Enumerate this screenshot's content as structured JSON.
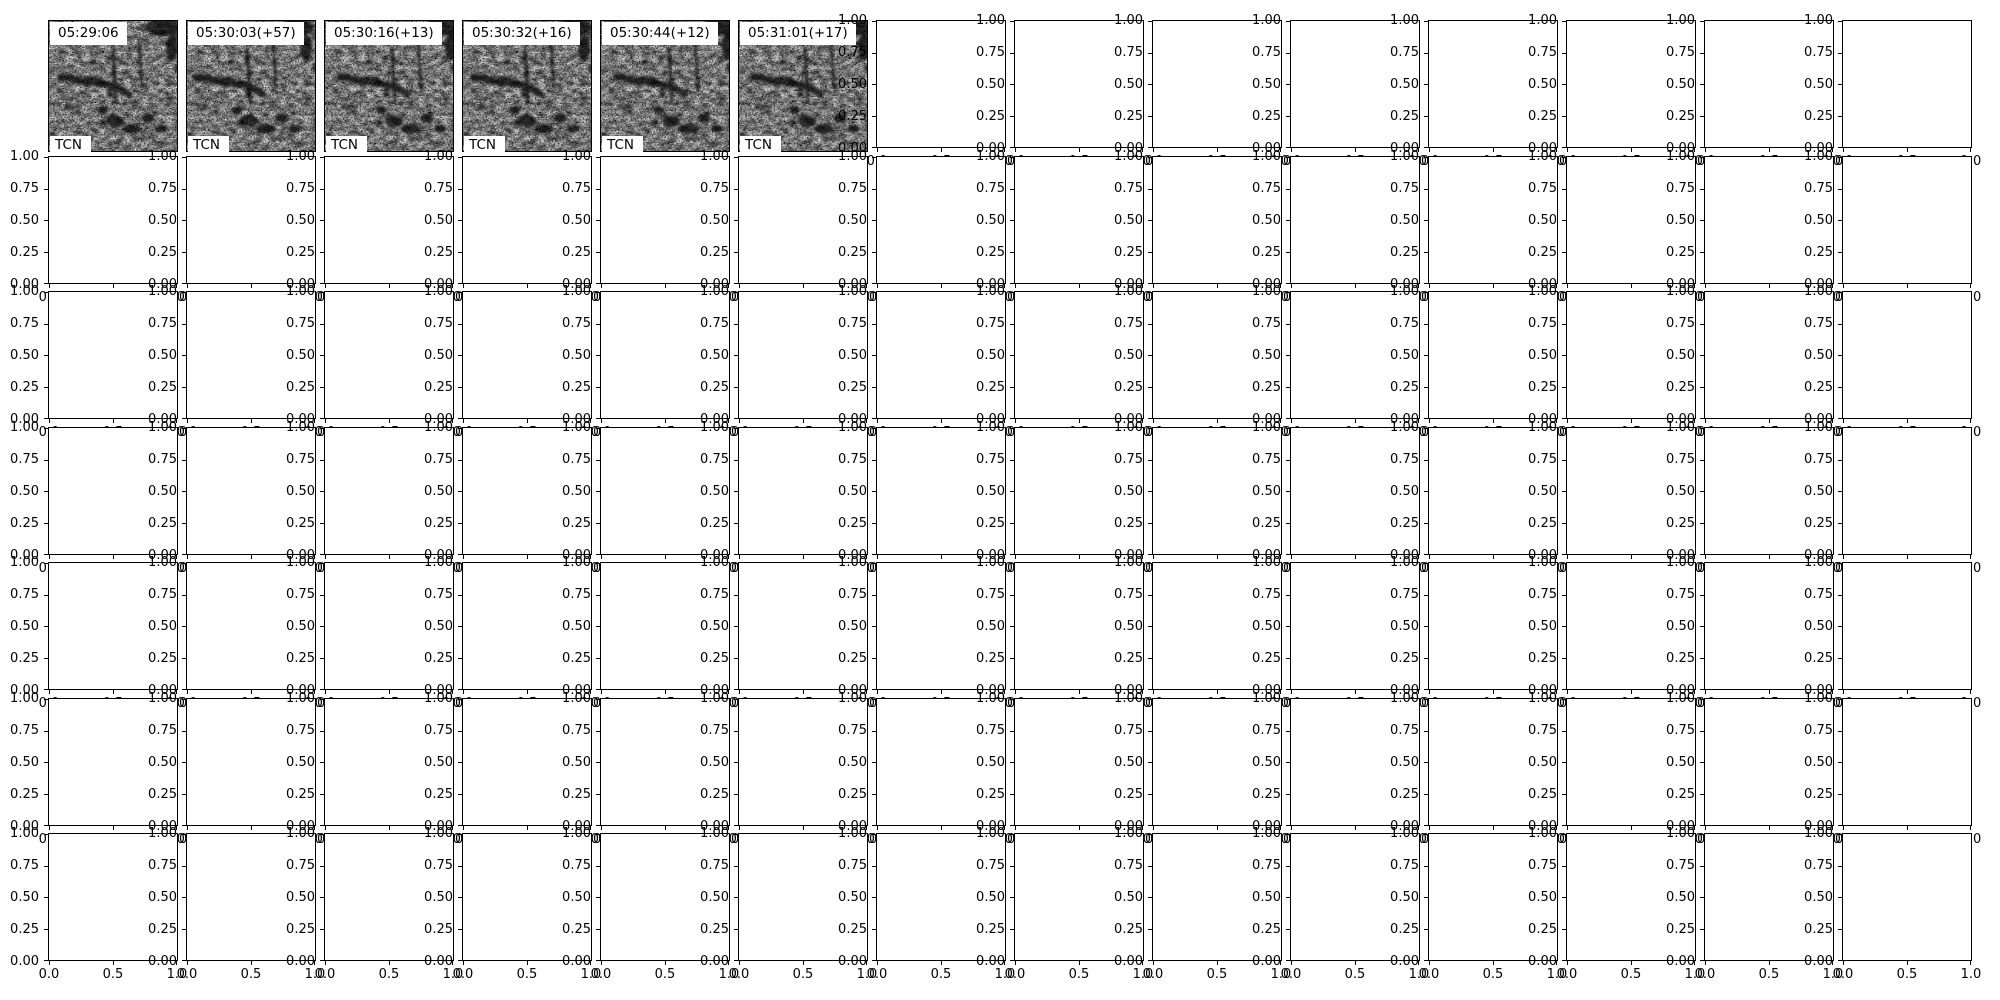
{
  "figure": {
    "background_color": "#ffffff",
    "spine_color": "#000000",
    "text_color": "#000000"
  },
  "spectrogram_strip": {
    "model_label": "TCN",
    "panels": [
      {
        "title": "05:29:06"
      },
      {
        "title": "05:30:03(+57)"
      },
      {
        "title": "05:30:16(+13)"
      },
      {
        "title": "05:30:32(+16)"
      },
      {
        "title": "05:30:44(+12)"
      },
      {
        "title": "05:31:01(+17)"
      }
    ]
  },
  "axes_grid": {
    "rows": 7,
    "cols": 14,
    "y_tick_labels": [
      "1.00",
      "0.75",
      "0.50",
      "0.25",
      "0.00"
    ],
    "x_tick_labels": [
      "0.0",
      "0.5",
      "1.0"
    ]
  },
  "chart_data": {
    "type": "heatmap",
    "title": "",
    "grid": {
      "rows": 7,
      "cols": 14
    },
    "spectrograms": [
      {
        "row": 0,
        "col": 0,
        "title": "05:29:06",
        "label": "TCN",
        "style": "grayscale spectrogram crop, dark descending call smear with vertical striations"
      },
      {
        "row": 0,
        "col": 1,
        "title": "05:30:03(+57)",
        "label": "TCN",
        "style": "grayscale spectrogram crop, dark descending call smear with vertical striations"
      },
      {
        "row": 0,
        "col": 2,
        "title": "05:30:16(+13)",
        "label": "TCN",
        "style": "grayscale spectrogram crop, dark descending call smear with vertical striations"
      },
      {
        "row": 0,
        "col": 3,
        "title": "05:30:32(+16)",
        "label": "TCN",
        "style": "grayscale spectrogram crop, dark descending call smear with vertical striations"
      },
      {
        "row": 0,
        "col": 4,
        "title": "05:30:44(+12)",
        "label": "TCN",
        "style": "grayscale spectrogram crop, dark descending call smear with vertical striations"
      },
      {
        "row": 0,
        "col": 5,
        "title": "05:31:01(+17)",
        "label": "TCN",
        "style": "grayscale spectrogram crop, dark descending call smear with vertical striations"
      }
    ],
    "empty_axes": {
      "count": 92,
      "xlim": [
        0.0,
        1.0
      ],
      "ylim": [
        0.0,
        1.0
      ],
      "x_ticks": [
        0.0,
        0.5,
        1.0
      ],
      "y_ticks": [
        0.0,
        0.25,
        0.5,
        0.75,
        1.0
      ],
      "grid_lines": false,
      "series": []
    },
    "layout_notes": "tightly packed subplot grid; tick labels of each axes overlap the neighbouring axes, producing 1.00/0.00 and 1.0/0.0 overlap artifacts at row and column boundaries"
  }
}
